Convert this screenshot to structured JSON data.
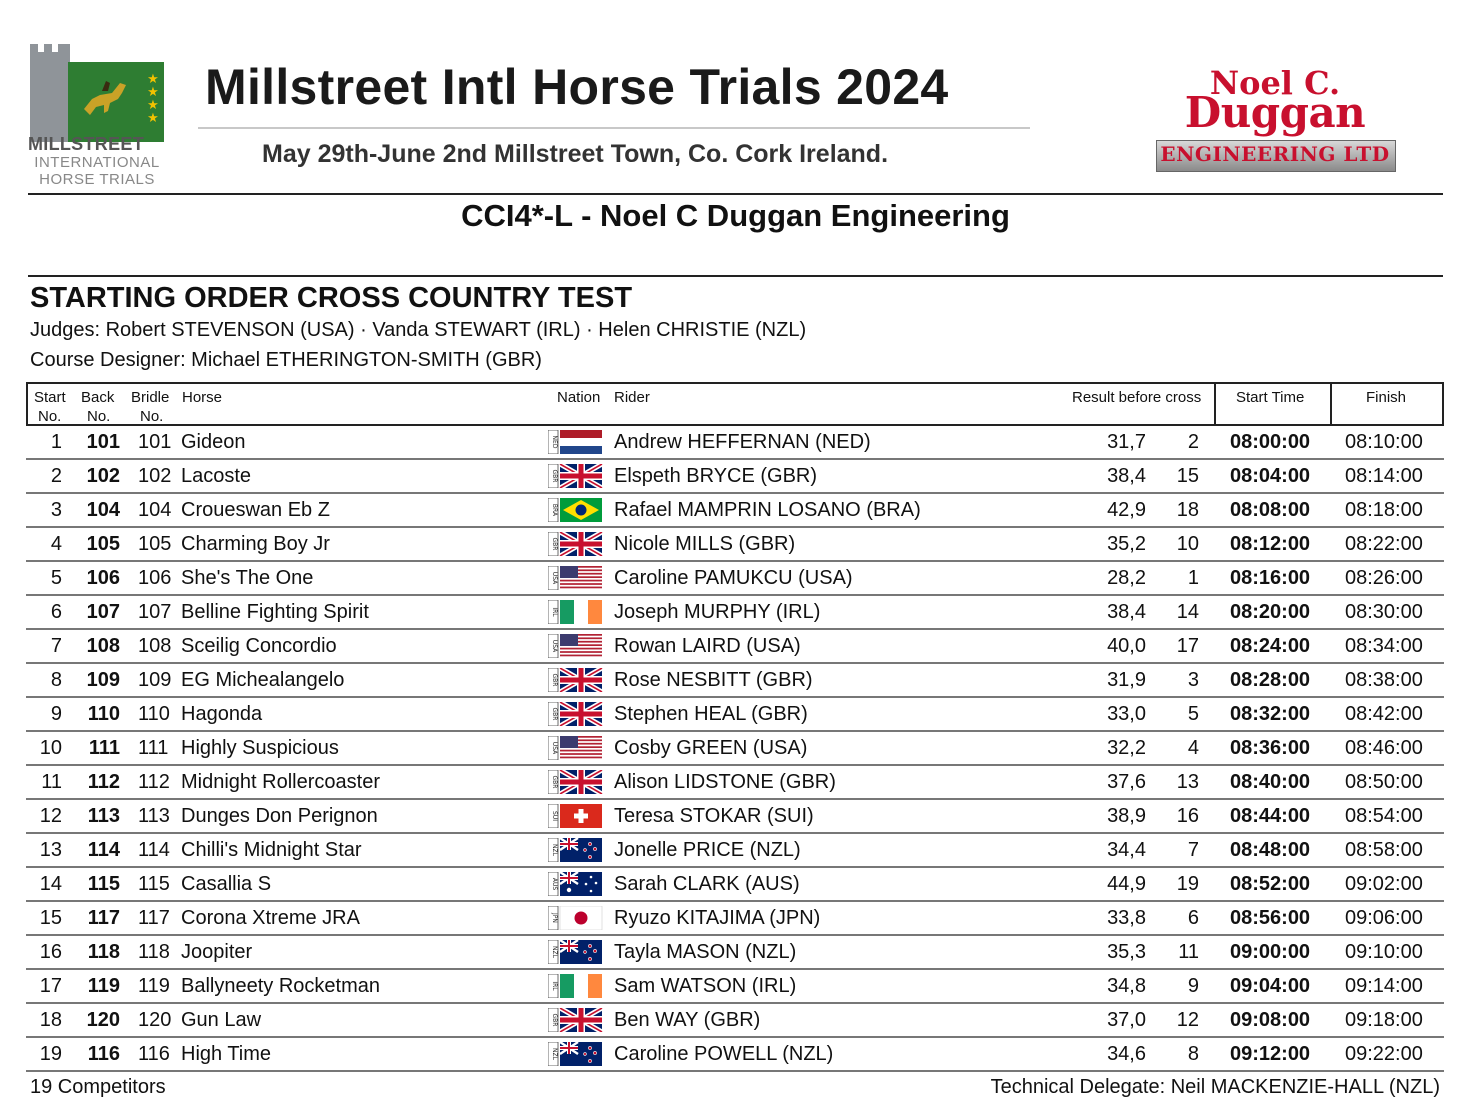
{
  "header": {
    "logo_left": {
      "line1": "MILLSTREET",
      "line2": "INTERNATIONAL",
      "line3": "HORSE TRIALS"
    },
    "title": "Millstreet Intl Horse Trials 2024",
    "dates": "May 29th-June 2nd Millstreet Town, Co. Cork Ireland.",
    "sponsor_logo": {
      "line1": "Noel C.",
      "line2": "Duggan",
      "line3": "ENGINEERING LTD"
    }
  },
  "competition_title": "CCI4*-L - Noel C Duggan Engineering",
  "section": {
    "title": "STARTING ORDER CROSS COUNTRY TEST",
    "judges": "Judges:  Robert STEVENSON (USA) · Vanda STEWART (IRL) · Helen CHRISTIE (NZL)",
    "course_designer": "Course Designer:  Michael ETHERINGTON-SMITH (GBR)"
  },
  "table": {
    "headers": {
      "start_1": "Start",
      "start_2": "No.",
      "back_1": "Back",
      "back_2": "No.",
      "bridle_1": "Bridle",
      "bridle_2": "No.",
      "horse": "Horse",
      "nation": "Nation",
      "rider": "Rider",
      "result": "Result before cross",
      "start_time": "Start Time",
      "finish": "Finish"
    },
    "rows": [
      {
        "start": "1",
        "back": "101",
        "bridle": "101",
        "horse": "Gideon",
        "nation": "NED",
        "rider": "Andrew HEFFERNAN (NED)",
        "score": "31,7",
        "rank": "2",
        "start_time": "08:00:00",
        "finish": "08:10:00"
      },
      {
        "start": "2",
        "back": "102",
        "bridle": "102",
        "horse": "Lacoste",
        "nation": "GBR",
        "rider": "Elspeth BRYCE (GBR)",
        "score": "38,4",
        "rank": "15",
        "start_time": "08:04:00",
        "finish": "08:14:00"
      },
      {
        "start": "3",
        "back": "104",
        "bridle": "104",
        "horse": "Croueswan Eb Z",
        "nation": "BRA",
        "rider": "Rafael MAMPRIN LOSANO (BRA)",
        "score": "42,9",
        "rank": "18",
        "start_time": "08:08:00",
        "finish": "08:18:00"
      },
      {
        "start": "4",
        "back": "105",
        "bridle": "105",
        "horse": "Charming Boy Jr",
        "nation": "GBR",
        "rider": "Nicole MILLS (GBR)",
        "score": "35,2",
        "rank": "10",
        "start_time": "08:12:00",
        "finish": "08:22:00"
      },
      {
        "start": "5",
        "back": "106",
        "bridle": "106",
        "horse": "She's The One",
        "nation": "USA",
        "rider": "Caroline PAMUKCU (USA)",
        "score": "28,2",
        "rank": "1",
        "start_time": "08:16:00",
        "finish": "08:26:00"
      },
      {
        "start": "6",
        "back": "107",
        "bridle": "107",
        "horse": "Belline Fighting Spirit",
        "nation": "IRL",
        "rider": "Joseph MURPHY (IRL)",
        "score": "38,4",
        "rank": "14",
        "start_time": "08:20:00",
        "finish": "08:30:00"
      },
      {
        "start": "7",
        "back": "108",
        "bridle": "108",
        "horse": "Sceilig Concordio",
        "nation": "USA",
        "rider": "Rowan LAIRD (USA)",
        "score": "40,0",
        "rank": "17",
        "start_time": "08:24:00",
        "finish": "08:34:00"
      },
      {
        "start": "8",
        "back": "109",
        "bridle": "109",
        "horse": "EG Michealangelo",
        "nation": "GBR",
        "rider": "Rose NESBITT (GBR)",
        "score": "31,9",
        "rank": "3",
        "start_time": "08:28:00",
        "finish": "08:38:00"
      },
      {
        "start": "9",
        "back": "110",
        "bridle": "110",
        "horse": "Hagonda",
        "nation": "GBR",
        "rider": "Stephen HEAL (GBR)",
        "score": "33,0",
        "rank": "5",
        "start_time": "08:32:00",
        "finish": "08:42:00"
      },
      {
        "start": "10",
        "back": "111",
        "bridle": "111",
        "horse": "Highly Suspicious",
        "nation": "USA",
        "rider": "Cosby GREEN (USA)",
        "score": "32,2",
        "rank": "4",
        "start_time": "08:36:00",
        "finish": "08:46:00"
      },
      {
        "start": "11",
        "back": "112",
        "bridle": "112",
        "horse": "Midnight Rollercoaster",
        "nation": "GBR",
        "rider": "Alison LIDSTONE (GBR)",
        "score": "37,6",
        "rank": "13",
        "start_time": "08:40:00",
        "finish": "08:50:00"
      },
      {
        "start": "12",
        "back": "113",
        "bridle": "113",
        "horse": "Dunges Don Perignon",
        "nation": "SUI",
        "rider": "Teresa STOKAR (SUI)",
        "score": "38,9",
        "rank": "16",
        "start_time": "08:44:00",
        "finish": "08:54:00"
      },
      {
        "start": "13",
        "back": "114",
        "bridle": "114",
        "horse": "Chilli's Midnight Star",
        "nation": "NZL",
        "rider": "Jonelle PRICE (NZL)",
        "score": "34,4",
        "rank": "7",
        "start_time": "08:48:00",
        "finish": "08:58:00"
      },
      {
        "start": "14",
        "back": "115",
        "bridle": "115",
        "horse": "Casallia S",
        "nation": "AUS",
        "rider": "Sarah CLARK (AUS)",
        "score": "44,9",
        "rank": "19",
        "start_time": "08:52:00",
        "finish": "09:02:00"
      },
      {
        "start": "15",
        "back": "117",
        "bridle": "117",
        "horse": "Corona Xtreme JRA",
        "nation": "JPN",
        "rider": "Ryuzo KITAJIMA (JPN)",
        "score": "33,8",
        "rank": "6",
        "start_time": "08:56:00",
        "finish": "09:06:00"
      },
      {
        "start": "16",
        "back": "118",
        "bridle": "118",
        "horse": "Joopiter",
        "nation": "NZL",
        "rider": "Tayla MASON (NZL)",
        "score": "35,3",
        "rank": "11",
        "start_time": "09:00:00",
        "finish": "09:10:00"
      },
      {
        "start": "17",
        "back": "119",
        "bridle": "119",
        "horse": "Ballyneety Rocketman",
        "nation": "IRL",
        "rider": "Sam WATSON (IRL)",
        "score": "34,8",
        "rank": "9",
        "start_time": "09:04:00",
        "finish": "09:14:00"
      },
      {
        "start": "18",
        "back": "120",
        "bridle": "120",
        "horse": "Gun Law",
        "nation": "GBR",
        "rider": "Ben WAY (GBR)",
        "score": "37,0",
        "rank": "12",
        "start_time": "09:08:00",
        "finish": "09:18:00"
      },
      {
        "start": "19",
        "back": "116",
        "bridle": "116",
        "horse": "High Time",
        "nation": "NZL",
        "rider": "Caroline POWELL (NZL)",
        "score": "34,6",
        "rank": "8",
        "start_time": "09:12:00",
        "finish": "09:22:00"
      }
    ]
  },
  "footer": {
    "competitors": "19 Competitors",
    "technical_delegate": "Technical Delegate: Neil MACKENZIE-HALL (NZL)"
  },
  "colors": {
    "sponsor_red": "#c8102e",
    "logo_green": "#2e7d32",
    "rule": "#222222"
  }
}
